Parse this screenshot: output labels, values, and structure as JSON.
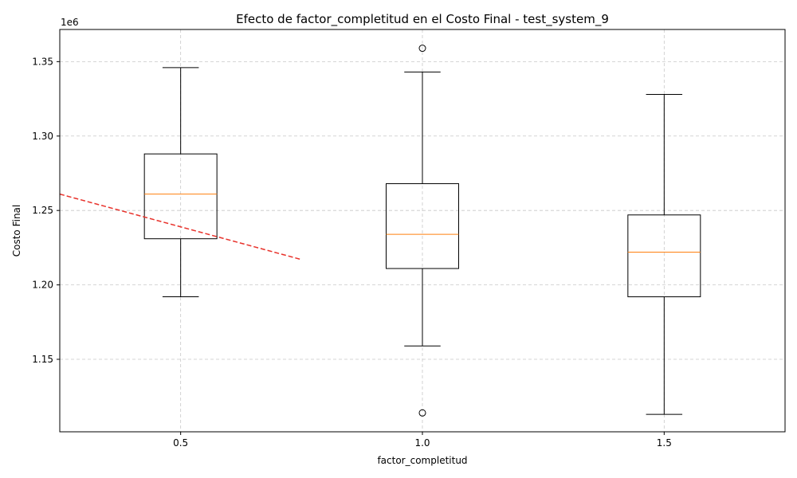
{
  "chart_data": {
    "type": "box",
    "title": "Efecto de factor_completitud en el Costo Final - test_system_9",
    "xlabel": "factor_completitud",
    "ylabel": "Costo Final",
    "y_offset_label": "1e6",
    "categories": [
      "0.5",
      "1.0",
      "1.5"
    ],
    "x_values": [
      0.5,
      1.0,
      1.5
    ],
    "xlim": [
      0.25,
      1.75
    ],
    "ylim": [
      1.1013,
      1.3716
    ],
    "y_unit_multiplier": 1000000,
    "yticks": [
      1.15,
      1.2,
      1.25,
      1.3,
      1.35
    ],
    "ytick_labels": [
      "1.15",
      "1.20",
      "1.25",
      "1.30",
      "1.35"
    ],
    "boxes": [
      {
        "category": "0.5",
        "whisker_low": 1.192,
        "q1": 1.231,
        "median": 1.261,
        "q3": 1.288,
        "whisker_high": 1.346,
        "outliers": []
      },
      {
        "category": "1.0",
        "whisker_low": 1.159,
        "q1": 1.211,
        "median": 1.234,
        "q3": 1.268,
        "whisker_high": 1.343,
        "outliers": [
          1.359,
          1.114
        ]
      },
      {
        "category": "1.5",
        "whisker_low": 1.113,
        "q1": 1.192,
        "median": 1.222,
        "q3": 1.247,
        "whisker_high": 1.328,
        "outliers": []
      }
    ],
    "trend_line": {
      "x": [
        0.25,
        0.75
      ],
      "y": [
        1.261,
        1.217
      ],
      "style": "dashed",
      "color": "#e8322b"
    },
    "grid": true,
    "colors": {
      "box": "#000000",
      "median": "#ff7f0e",
      "grid": "#c8c8c8",
      "trend": "#e8322b"
    }
  }
}
